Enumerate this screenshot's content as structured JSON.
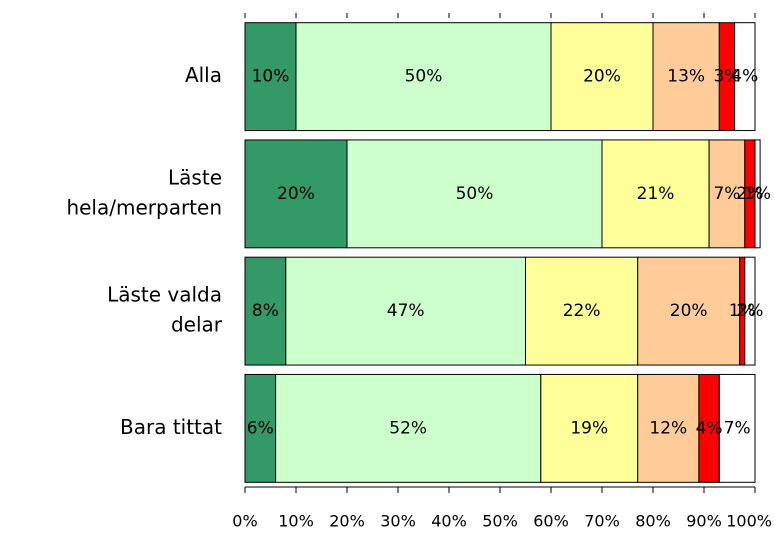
{
  "chart_data": {
    "type": "stacked-barh",
    "categories": [
      [
        "Alla"
      ],
      [
        "Läste",
        "hela/merparten"
      ],
      [
        "Läste valda",
        "delar"
      ],
      [
        "Bara tittat"
      ]
    ],
    "series": [
      {
        "color": "#339966",
        "values": [
          10,
          20,
          8,
          6
        ],
        "value_labels": [
          "10%",
          "20%",
          "8%",
          "6%"
        ]
      },
      {
        "color": "#ccffcc",
        "values": [
          50,
          50,
          47,
          52
        ],
        "value_labels": [
          "50%",
          "50%",
          "47%",
          "52%"
        ]
      },
      {
        "color": "#ffff99",
        "values": [
          20,
          21,
          22,
          19
        ],
        "value_labels": [
          "20%",
          "21%",
          "22%",
          "19%"
        ]
      },
      {
        "color": "#ffcc99",
        "values": [
          13,
          7,
          20,
          12
        ],
        "value_labels": [
          "13%",
          "7%",
          "20%",
          "12%"
        ]
      },
      {
        "color": "#ff0000",
        "values": [
          3,
          2,
          1,
          4
        ],
        "value_labels": [
          "3%",
          "2%",
          "1%",
          "4%"
        ]
      },
      {
        "color": "#ffffff",
        "values": [
          4,
          1,
          2,
          7
        ],
        "value_labels": [
          "4%",
          "1%",
          "2%",
          "7%"
        ]
      }
    ],
    "xlim": [
      0,
      100
    ],
    "xticks": [
      {
        "value": 0,
        "label": "0%"
      },
      {
        "value": 10,
        "label": "10%"
      },
      {
        "value": 20,
        "label": "20%"
      },
      {
        "value": 30,
        "label": "30%"
      },
      {
        "value": 40,
        "label": "40%"
      },
      {
        "value": 50,
        "label": "50%"
      },
      {
        "value": 60,
        "label": "60%"
      },
      {
        "value": 70,
        "label": "70%"
      },
      {
        "value": 80,
        "label": "80%"
      },
      {
        "value": 90,
        "label": "90%"
      },
      {
        "value": 100,
        "label": "100%"
      }
    ]
  }
}
